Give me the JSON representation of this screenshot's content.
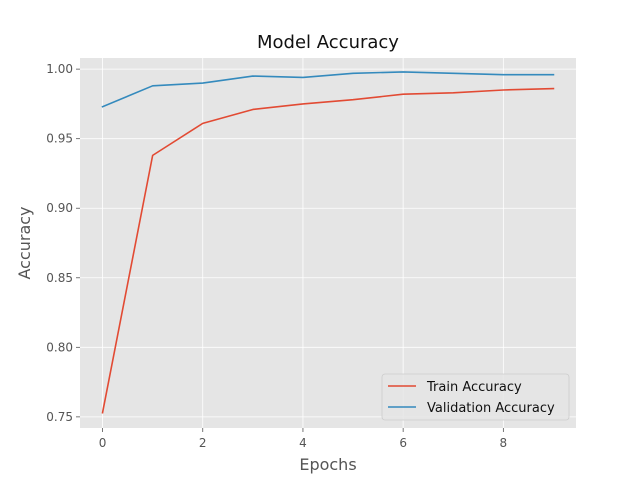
{
  "chart_data": {
    "type": "line",
    "title": "Model Accuracy",
    "xlabel": "Epochs",
    "ylabel": "Accuracy",
    "x": [
      0,
      1,
      2,
      3,
      4,
      5,
      6,
      7,
      8,
      9
    ],
    "xlim": [
      -0.45,
      9.45
    ],
    "ylim": [
      0.742,
      1.008
    ],
    "xticks": [
      0,
      2,
      4,
      6,
      8
    ],
    "yticks": [
      0.75,
      0.8,
      0.85,
      0.9,
      0.95,
      1.0
    ],
    "ytick_labels": [
      "0.75",
      "0.80",
      "0.85",
      "0.90",
      "0.95",
      "1.00"
    ],
    "grid": true,
    "legend_position": "lower-right",
    "series": [
      {
        "name": "Train Accuracy",
        "color": "#E24A33",
        "values": [
          0.753,
          0.938,
          0.961,
          0.971,
          0.975,
          0.978,
          0.982,
          0.983,
          0.985,
          0.986
        ]
      },
      {
        "name": "Validation Accuracy",
        "color": "#348ABD",
        "values": [
          0.973,
          0.988,
          0.99,
          0.995,
          0.994,
          0.997,
          0.998,
          0.997,
          0.996,
          0.996
        ]
      }
    ]
  },
  "colors": {
    "plot_background": "#E5E5E5",
    "grid": "#FFFFFF",
    "text": "#555555"
  }
}
